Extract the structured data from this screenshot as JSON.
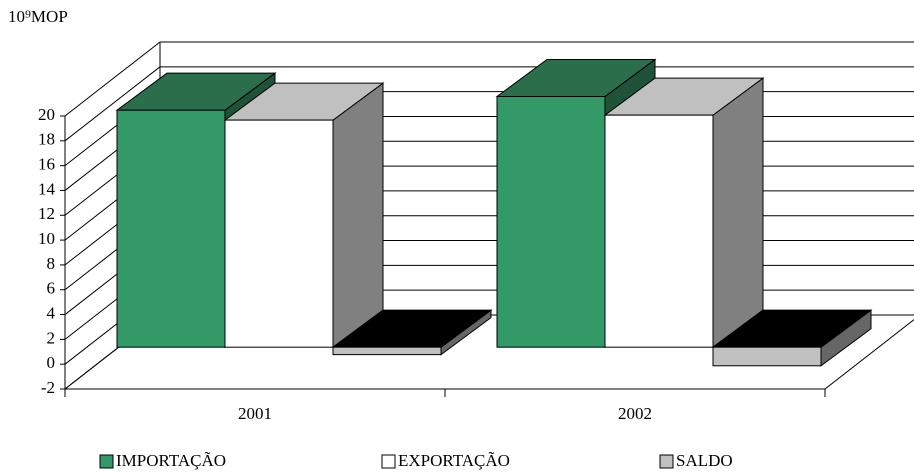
{
  "chart_data": {
    "type": "bar3d",
    "y_label": "10⁹MOP",
    "categories": [
      "2001",
      "2002"
    ],
    "series": [
      {
        "name": "IMPORTAÇÃO",
        "color": "#339966",
        "values": [
          19.1,
          20.2
        ]
      },
      {
        "name": "EXPORTAÇÃO",
        "color": "#ffffff",
        "values": [
          18.3,
          18.7
        ]
      },
      {
        "name": "SALDO",
        "color": "#c0c0c0",
        "values": [
          -0.6,
          -1.5
        ]
      }
    ],
    "ylim": [
      -2,
      20
    ],
    "yticks": [
      -2,
      0,
      2,
      4,
      6,
      8,
      10,
      12,
      14,
      16,
      18,
      20
    ],
    "grid": true,
    "legend": "bottom"
  }
}
